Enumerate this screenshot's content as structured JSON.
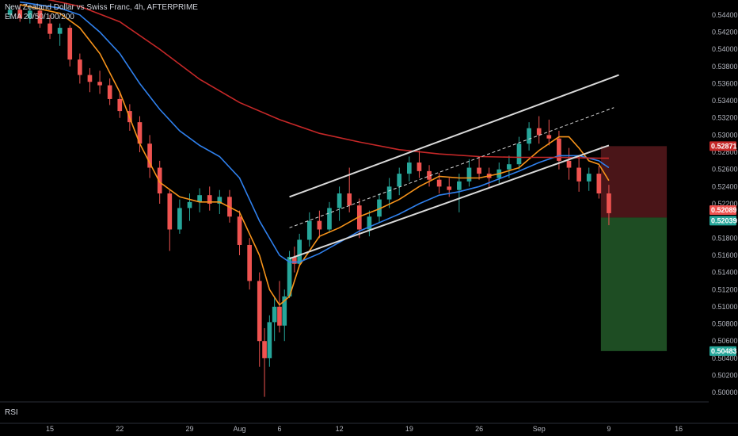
{
  "legend": {
    "title": "New Zealand Dollar vs Swiss Franc, 4h, AFTERPRIME",
    "indicator": "EMA 20/50/100/200"
  },
  "rsi_label": "RSI",
  "colors": {
    "background": "#000000",
    "up": "#26a69a",
    "down": "#ef5350",
    "ema20": "#f7931a",
    "ema50": "#2f80ed",
    "ema200": "#c62828",
    "channel": "#d9d9d9",
    "stop_zone": "#4a1518",
    "target_zone": "#1e4d23"
  },
  "chart_data": {
    "type": "candlestick",
    "symbol": "NZDCHF",
    "timeframe": "4h",
    "y_ticks": [
      "0.54400",
      "0.54200",
      "0.54000",
      "0.53800",
      "0.53600",
      "0.53400",
      "0.53200",
      "0.53000",
      "0.52800",
      "0.52600",
      "0.52400",
      "0.52200",
      "0.52000",
      "0.51800",
      "0.51600",
      "0.51400",
      "0.51200",
      "0.51000",
      "0.50800",
      "0.50600",
      "0.50400",
      "0.50200",
      "0.50000"
    ],
    "ylim": [
      0.499,
      0.545
    ],
    "x_ticks": [
      {
        "label": "15",
        "x": 1
      },
      {
        "label": "22",
        "x": 8
      },
      {
        "label": "29",
        "x": 15
      },
      {
        "label": "Aug",
        "x": 20
      },
      {
        "label": "6",
        "x": 24
      },
      {
        "label": "12",
        "x": 30
      },
      {
        "label": "19",
        "x": 37
      },
      {
        "label": "26",
        "x": 44
      },
      {
        "label": "Sep",
        "x": 50
      },
      {
        "label": "9",
        "x": 57
      },
      {
        "label": "16",
        "x": 64
      }
    ],
    "xlim": [
      -4,
      67
    ],
    "price_badges": [
      {
        "label": "0.52871",
        "value": 0.52871,
        "kind": "stop"
      },
      {
        "label": "0.52089",
        "value": 0.52089,
        "kind": "current"
      },
      {
        "label": "0.52039",
        "value": 0.52039,
        "kind": "entry"
      },
      {
        "label": "0.50483",
        "value": 0.50483,
        "kind": "target"
      }
    ],
    "position": {
      "entry": 0.52039,
      "stop": 0.52871,
      "target": 0.50483,
      "x_start": 56.2,
      "x_end": 62.8
    },
    "channel": {
      "upper": [
        [
          25,
          0.5228
        ],
        [
          58,
          0.537
        ]
      ],
      "lower": [
        [
          25,
          0.5156
        ],
        [
          57,
          0.5288
        ]
      ],
      "mid": [
        [
          25,
          0.5192
        ],
        [
          57.5,
          0.5332
        ]
      ]
    },
    "series": [
      {
        "name": "EMA 20",
        "color": "#f7931a",
        "points": [
          [
            -2,
            0.5452
          ],
          [
            2,
            0.5442
          ],
          [
            4,
            0.5425
          ],
          [
            6,
            0.5395
          ],
          [
            8,
            0.535
          ],
          [
            10,
            0.529
          ],
          [
            12,
            0.5245
          ],
          [
            14,
            0.5228
          ],
          [
            16,
            0.5222
          ],
          [
            18,
            0.5222
          ],
          [
            20,
            0.521
          ],
          [
            22,
            0.516
          ],
          [
            23,
            0.512
          ],
          [
            24,
            0.5102
          ],
          [
            25,
            0.5112
          ],
          [
            26,
            0.5148
          ],
          [
            27,
            0.5165
          ],
          [
            28,
            0.5182
          ],
          [
            30,
            0.5192
          ],
          [
            32,
            0.5205
          ],
          [
            34,
            0.5214
          ],
          [
            36,
            0.5225
          ],
          [
            38,
            0.524
          ],
          [
            40,
            0.5252
          ],
          [
            42,
            0.525
          ],
          [
            44,
            0.525
          ],
          [
            46,
            0.5255
          ],
          [
            48,
            0.5262
          ],
          [
            50,
            0.5282
          ],
          [
            52,
            0.5298
          ],
          [
            53,
            0.5298
          ],
          [
            54,
            0.5285
          ],
          [
            55,
            0.527
          ],
          [
            56,
            0.5266
          ],
          [
            57,
            0.5247
          ]
        ]
      },
      {
        "name": "EMA 50",
        "color": "#2f80ed",
        "points": [
          [
            -2,
            0.5455
          ],
          [
            2,
            0.5448
          ],
          [
            4,
            0.544
          ],
          [
            6,
            0.542
          ],
          [
            8,
            0.5395
          ],
          [
            10,
            0.536
          ],
          [
            12,
            0.533
          ],
          [
            14,
            0.5305
          ],
          [
            16,
            0.5288
          ],
          [
            18,
            0.5275
          ],
          [
            20,
            0.525
          ],
          [
            22,
            0.52
          ],
          [
            24,
            0.516
          ],
          [
            25,
            0.5152
          ],
          [
            26,
            0.5152
          ],
          [
            28,
            0.5162
          ],
          [
            30,
            0.5175
          ],
          [
            32,
            0.5188
          ],
          [
            34,
            0.5198
          ],
          [
            36,
            0.5208
          ],
          [
            38,
            0.522
          ],
          [
            40,
            0.523
          ],
          [
            42,
            0.5234
          ],
          [
            44,
            0.524
          ],
          [
            46,
            0.5249
          ],
          [
            48,
            0.5258
          ],
          [
            50,
            0.5268
          ],
          [
            52,
            0.5276
          ],
          [
            54,
            0.5276
          ],
          [
            56,
            0.527
          ],
          [
            57,
            0.5262
          ]
        ]
      },
      {
        "name": "EMA 200",
        "color": "#c62828",
        "points": [
          [
            0,
            0.546
          ],
          [
            4,
            0.545
          ],
          [
            8,
            0.5432
          ],
          [
            12,
            0.54
          ],
          [
            16,
            0.5365
          ],
          [
            20,
            0.5338
          ],
          [
            24,
            0.5318
          ],
          [
            28,
            0.5302
          ],
          [
            32,
            0.5292
          ],
          [
            36,
            0.5283
          ],
          [
            40,
            0.5278
          ],
          [
            44,
            0.5275
          ],
          [
            48,
            0.5274
          ],
          [
            52,
            0.5274
          ],
          [
            56,
            0.5273
          ],
          [
            57,
            0.5273
          ]
        ]
      }
    ],
    "candles": [
      [
        -3,
        0.544,
        0.545,
        0.5436,
        0.5446
      ],
      [
        -2,
        0.5446,
        0.5452,
        0.5432,
        0.5436
      ],
      [
        -1,
        0.5436,
        0.545,
        0.543,
        0.5445
      ],
      [
        0,
        0.5445,
        0.5448,
        0.5425,
        0.543
      ],
      [
        1,
        0.543,
        0.544,
        0.5412,
        0.5418
      ],
      [
        2,
        0.5418,
        0.543,
        0.5404,
        0.5425
      ],
      [
        3,
        0.5425,
        0.5428,
        0.538,
        0.5388
      ],
      [
        4,
        0.5388,
        0.5395,
        0.536,
        0.537
      ],
      [
        5,
        0.537,
        0.5378,
        0.535,
        0.5362
      ],
      [
        6,
        0.5362,
        0.5375,
        0.5348,
        0.5358
      ],
      [
        7,
        0.5358,
        0.5366,
        0.5335,
        0.5342
      ],
      [
        8,
        0.5342,
        0.535,
        0.532,
        0.5328
      ],
      [
        9,
        0.5328,
        0.5336,
        0.5305,
        0.5315
      ],
      [
        10,
        0.5315,
        0.5322,
        0.528,
        0.529
      ],
      [
        11,
        0.529,
        0.53,
        0.525,
        0.5262
      ],
      [
        12,
        0.5262,
        0.527,
        0.522,
        0.5232
      ],
      [
        13,
        0.5232,
        0.5236,
        0.5165,
        0.519
      ],
      [
        14,
        0.519,
        0.5225,
        0.5185,
        0.5215
      ],
      [
        15,
        0.5215,
        0.5232,
        0.52,
        0.5222
      ],
      [
        16,
        0.5222,
        0.5238,
        0.521,
        0.523
      ],
      [
        17,
        0.523,
        0.524,
        0.5212,
        0.522
      ],
      [
        18,
        0.522,
        0.5236,
        0.5208,
        0.5228
      ],
      [
        19,
        0.5228,
        0.5236,
        0.5198,
        0.5205
      ],
      [
        20,
        0.5205,
        0.5212,
        0.516,
        0.5172
      ],
      [
        21,
        0.5172,
        0.518,
        0.512,
        0.513
      ],
      [
        22,
        0.513,
        0.514,
        0.503,
        0.506
      ],
      [
        22.5,
        0.506,
        0.5075,
        0.4995,
        0.504
      ],
      [
        23,
        0.504,
        0.509,
        0.503,
        0.5082
      ],
      [
        23.5,
        0.5082,
        0.511,
        0.506,
        0.51
      ],
      [
        24,
        0.51,
        0.513,
        0.507,
        0.5078
      ],
      [
        24.5,
        0.5078,
        0.512,
        0.506,
        0.5112
      ],
      [
        25,
        0.5112,
        0.5165,
        0.511,
        0.5158
      ],
      [
        25.5,
        0.5158,
        0.517,
        0.514,
        0.515
      ],
      [
        26,
        0.515,
        0.5185,
        0.5148,
        0.5178
      ],
      [
        27,
        0.5178,
        0.521,
        0.517,
        0.52
      ],
      [
        28,
        0.52,
        0.5212,
        0.518,
        0.519
      ],
      [
        29,
        0.519,
        0.5222,
        0.5186,
        0.5215
      ],
      [
        30,
        0.5215,
        0.524,
        0.52,
        0.5232
      ],
      [
        31,
        0.5232,
        0.5262,
        0.521,
        0.5218
      ],
      [
        32,
        0.5218,
        0.5226,
        0.518,
        0.519
      ],
      [
        33,
        0.519,
        0.5212,
        0.5182,
        0.5205
      ],
      [
        34,
        0.5205,
        0.5232,
        0.5198,
        0.5225
      ],
      [
        35,
        0.5225,
        0.525,
        0.5215,
        0.524
      ],
      [
        36,
        0.524,
        0.5262,
        0.523,
        0.5255
      ],
      [
        37,
        0.5255,
        0.5275,
        0.5246,
        0.5268
      ],
      [
        38,
        0.5268,
        0.5282,
        0.525,
        0.5258
      ],
      [
        39,
        0.5258,
        0.5265,
        0.524,
        0.5248
      ],
      [
        40,
        0.5248,
        0.5256,
        0.5232,
        0.524
      ],
      [
        41,
        0.524,
        0.525,
        0.5228,
        0.5236
      ],
      [
        42,
        0.5236,
        0.5255,
        0.521,
        0.5246
      ],
      [
        43,
        0.5246,
        0.5272,
        0.524,
        0.5262
      ],
      [
        44,
        0.5262,
        0.5275,
        0.5248,
        0.5255
      ],
      [
        45,
        0.5255,
        0.5262,
        0.5238,
        0.525
      ],
      [
        46,
        0.525,
        0.5268,
        0.5244,
        0.526
      ],
      [
        47,
        0.526,
        0.5276,
        0.525,
        0.5266
      ],
      [
        48,
        0.5266,
        0.5298,
        0.526,
        0.529
      ],
      [
        49,
        0.529,
        0.5315,
        0.5282,
        0.5308
      ],
      [
        50,
        0.5308,
        0.5322,
        0.529,
        0.53
      ],
      [
        51,
        0.53,
        0.5318,
        0.5288,
        0.5296
      ],
      [
        52,
        0.5296,
        0.5305,
        0.526,
        0.527
      ],
      [
        53,
        0.527,
        0.5285,
        0.5248,
        0.5262
      ],
      [
        54,
        0.5262,
        0.5275,
        0.5234,
        0.5246
      ],
      [
        55,
        0.5246,
        0.5262,
        0.5235,
        0.5255
      ],
      [
        56,
        0.5255,
        0.5264,
        0.5226,
        0.5232
      ],
      [
        57,
        0.5232,
        0.5242,
        0.5195,
        0.5209
      ]
    ]
  }
}
